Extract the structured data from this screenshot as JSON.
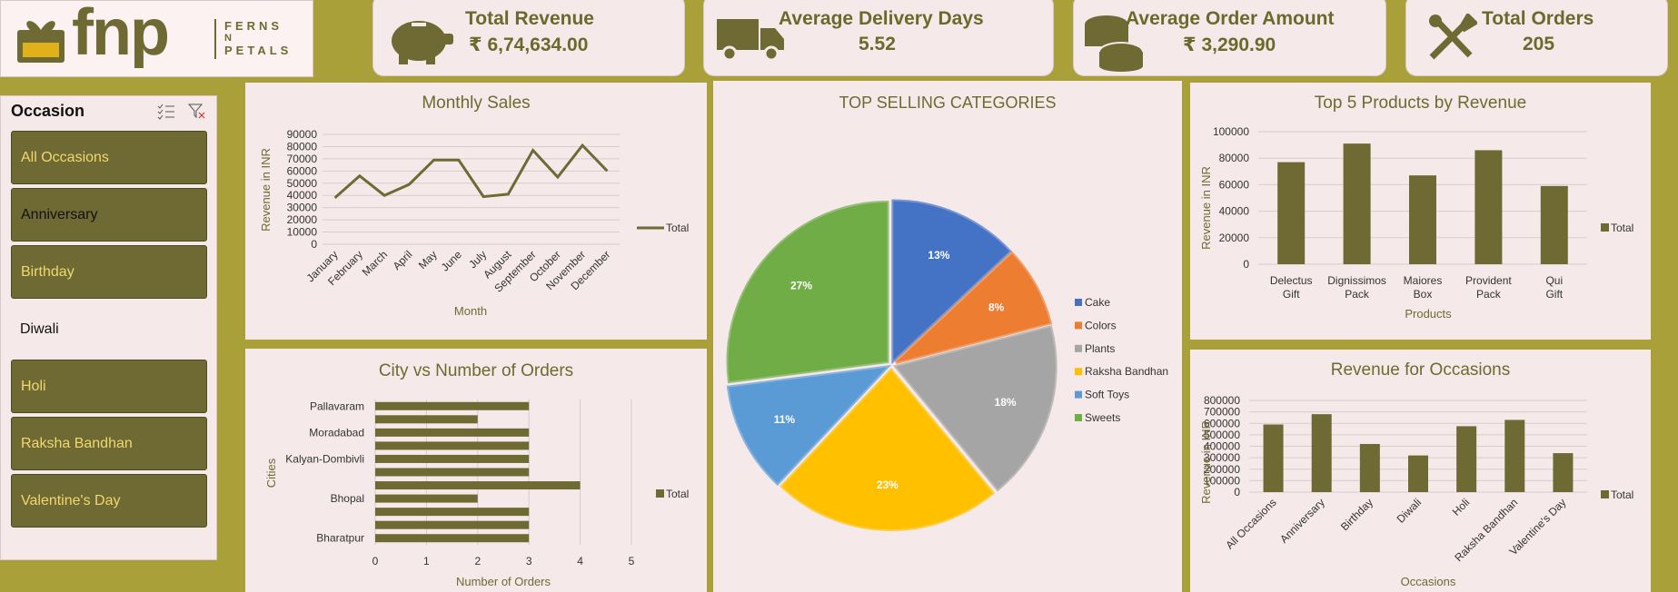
{
  "brand": {
    "short": "fnp",
    "line1": "FERNS",
    "line2": "N",
    "line3": "PETALS"
  },
  "kpis": [
    {
      "title": "Total Revenue",
      "value": "₹ 6,74,634.00",
      "icon": "piggy-bank-icon"
    },
    {
      "title": "Average Delivery Days",
      "value": "5.52",
      "icon": "truck-icon"
    },
    {
      "title": "Average Order Amount",
      "value": "₹ 3,290.90",
      "icon": "coins-icon"
    },
    {
      "title": "Total Orders",
      "value": "205",
      "icon": "tools-icon"
    }
  ],
  "slicer": {
    "title": "Occasion",
    "items": [
      {
        "label": "All Occasions",
        "state": "sel"
      },
      {
        "label": "Anniversary",
        "state": "unsel"
      },
      {
        "label": "Birthday",
        "state": "sel"
      },
      {
        "label": "Diwali",
        "state": "plain"
      },
      {
        "label": "Holi",
        "state": "sel"
      },
      {
        "label": "Raksha Bandhan",
        "state": "sel"
      },
      {
        "label": "Valentine's Day",
        "state": "sel"
      }
    ]
  },
  "colors": {
    "olive": "#6f6a33",
    "bg": "#a9a03a",
    "panel": "#f5e9ea"
  },
  "chart_data": [
    {
      "id": "monthly",
      "type": "line",
      "title": "Monthly Sales",
      "xlabel": "Month",
      "ylabel": "Revenue in INR",
      "categories": [
        "January",
        "February",
        "March",
        "April",
        "May",
        "June",
        "July",
        "August",
        "September",
        "October",
        "November",
        "December"
      ],
      "series": [
        {
          "name": "Total",
          "values": [
            38000,
            56000,
            40000,
            49000,
            69000,
            69000,
            39000,
            41000,
            77000,
            55000,
            81000,
            60000
          ]
        }
      ],
      "ylim": [
        0,
        90000
      ],
      "yticks": [
        0,
        10000,
        20000,
        30000,
        40000,
        50000,
        60000,
        70000,
        80000,
        90000
      ]
    },
    {
      "id": "city",
      "type": "bar",
      "orientation": "horizontal",
      "title": "City vs Number of Orders",
      "xlabel": "Number of Orders",
      "ylabel": "Cities",
      "categories": [
        "Bharatpur",
        "",
        "",
        "Bhopal",
        "",
        "",
        "Kalyan-Dombivli",
        "",
        "Moradabad",
        "",
        "Pallavaram"
      ],
      "series": [
        {
          "name": "Total",
          "values": [
            3,
            3,
            3,
            2,
            4,
            3,
            3,
            3,
            3,
            2,
            3
          ]
        }
      ],
      "xlim": [
        0,
        5
      ],
      "xticks": [
        0,
        1,
        2,
        3,
        4,
        5
      ]
    },
    {
      "id": "categories",
      "type": "pie",
      "title": "TOP SELLING CATEGORIES",
      "labels": [
        "Cake",
        "Colors",
        "Plants",
        "Raksha Bandhan",
        "Soft Toys",
        "Sweets"
      ],
      "values": [
        13,
        8,
        18,
        23,
        11,
        27
      ],
      "data_labels": [
        "13%",
        "8%",
        "18%",
        "23%",
        "11%",
        "27%"
      ],
      "colors": [
        "#4472c4",
        "#ed7d31",
        "#a5a5a5",
        "#ffc000",
        "#5b9bd5",
        "#70ad47"
      ],
      "legend": "right"
    },
    {
      "id": "top5",
      "type": "bar",
      "title": "Top 5 Products by Revenue",
      "xlabel": "Products",
      "ylabel": "Revenue in INR",
      "categories": [
        "Delectus Gift",
        "Dignissimos Pack",
        "Maiores Box",
        "Provident Pack",
        "Qui Gift"
      ],
      "series": [
        {
          "name": "Total",
          "values": [
            77000,
            91000,
            67000,
            86000,
            59000
          ]
        }
      ],
      "ylim": [
        0,
        100000
      ],
      "yticks": [
        0,
        20000,
        40000,
        60000,
        80000,
        100000
      ]
    },
    {
      "id": "occasions",
      "type": "bar",
      "title": "Revenue for Occasions",
      "xlabel": "Occasions",
      "ylabel": "Revenue in INR",
      "categories": [
        "All Occasions",
        "Anniversary",
        "Birthday",
        "Diwali",
        "Holi",
        "Raksha Bandhan",
        "Valentine's Day"
      ],
      "series": [
        {
          "name": "Total",
          "values": [
            590000,
            680000,
            420000,
            320000,
            575000,
            630000,
            340000
          ]
        }
      ],
      "ylim": [
        0,
        800000
      ],
      "yticks": [
        0,
        100000,
        200000,
        300000,
        400000,
        500000,
        600000,
        700000,
        800000
      ]
    }
  ]
}
